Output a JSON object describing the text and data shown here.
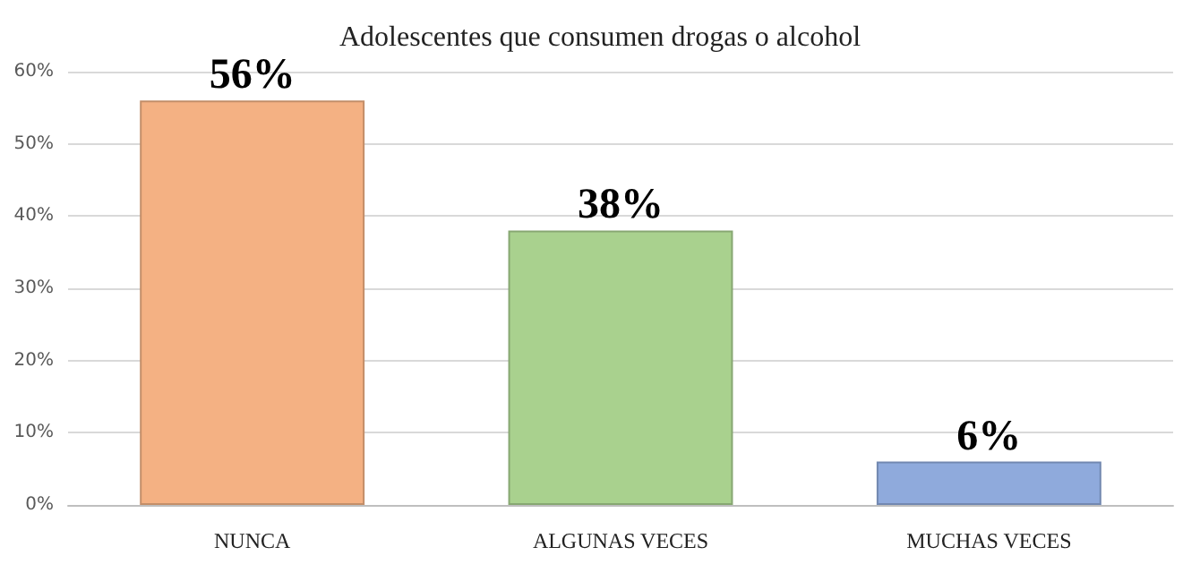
{
  "chart_data": {
    "type": "bar",
    "title": "Adolescentes que consumen drogas o alcohol",
    "categories": [
      "NUNCA",
      "ALGUNAS VECES",
      "MUCHAS VECES"
    ],
    "values": [
      56,
      38,
      6
    ],
    "colors": [
      "#f4b183",
      "#a9d18e",
      "#8faadc"
    ],
    "value_labels": [
      "56%",
      "38%",
      "6%"
    ],
    "ylim": [
      0,
      60
    ],
    "yticks": [
      {
        "value": 0,
        "label": "0%"
      },
      {
        "value": 10,
        "label": "10%"
      },
      {
        "value": 20,
        "label": "20%"
      },
      {
        "value": 30,
        "label": "30%"
      },
      {
        "value": 40,
        "label": "40%"
      },
      {
        "value": 50,
        "label": "50%"
      },
      {
        "value": 60,
        "label": "60%"
      }
    ],
    "grid": "y"
  }
}
